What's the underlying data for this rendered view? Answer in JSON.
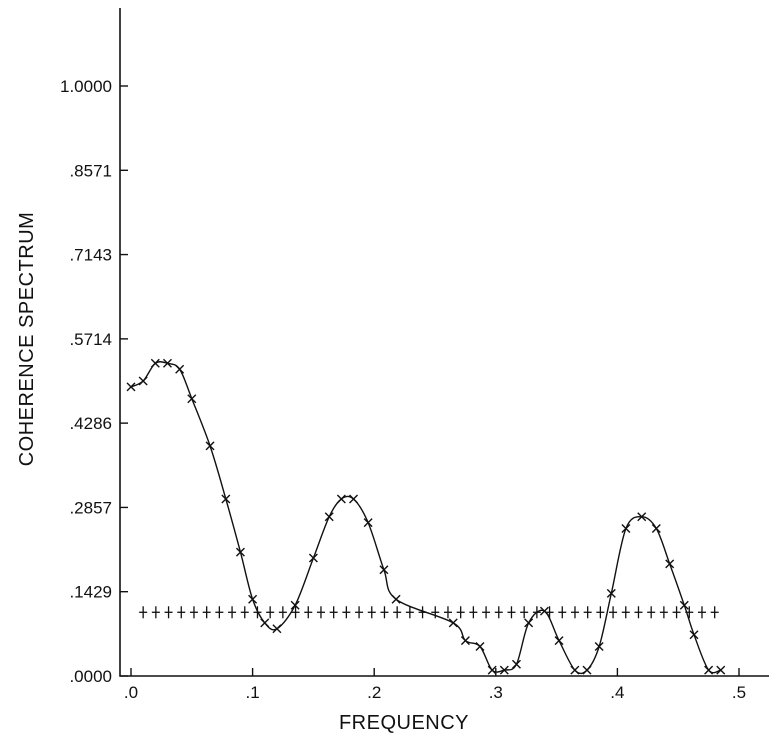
{
  "chart_data": {
    "type": "scatter",
    "xlabel": "FREQUENCY",
    "ylabel": "COHERENCE SPECTRUM",
    "xlim": [
      -0.005,
      0.52
    ],
    "ylim": [
      0,
      1.1
    ],
    "x_ticks": [
      0,
      0.1,
      0.2,
      0.3,
      0.4,
      0.5
    ],
    "x_tick_labels": [
      ".0",
      ".1",
      ".2",
      ".3",
      ".4",
      ".5"
    ],
    "y_ticks": [
      0,
      0.1429,
      0.2857,
      0.4286,
      0.5714,
      0.7143,
      0.8571,
      1.0
    ],
    "y_tick_labels": [
      ".0000",
      ".1429",
      ".2857",
      ".4286",
      ".5714",
      ".7143",
      ".8571",
      "1.0000"
    ],
    "grid": false,
    "series": [
      {
        "marker": "x",
        "connected": true,
        "points": [
          [
            0.0,
            0.49
          ],
          [
            0.01,
            0.5
          ],
          [
            0.02,
            0.53
          ],
          [
            0.03,
            0.53
          ],
          [
            0.04,
            0.52
          ],
          [
            0.05,
            0.47
          ],
          [
            0.065,
            0.39
          ],
          [
            0.078,
            0.3
          ],
          [
            0.09,
            0.21
          ],
          [
            0.1,
            0.13
          ],
          [
            0.11,
            0.09
          ],
          [
            0.12,
            0.08
          ],
          [
            0.135,
            0.12
          ],
          [
            0.15,
            0.2
          ],
          [
            0.163,
            0.27
          ],
          [
            0.173,
            0.3
          ],
          [
            0.183,
            0.3
          ],
          [
            0.195,
            0.26
          ],
          [
            0.208,
            0.18
          ],
          [
            0.218,
            0.13
          ],
          [
            0.265,
            0.09
          ],
          [
            0.275,
            0.06
          ],
          [
            0.287,
            0.05
          ],
          [
            0.297,
            0.01
          ],
          [
            0.307,
            0.01
          ],
          [
            0.317,
            0.02
          ],
          [
            0.327,
            0.09
          ],
          [
            0.34,
            0.11
          ],
          [
            0.352,
            0.06
          ],
          [
            0.365,
            0.01
          ],
          [
            0.375,
            0.01
          ],
          [
            0.385,
            0.05
          ],
          [
            0.395,
            0.14
          ],
          [
            0.407,
            0.25
          ],
          [
            0.42,
            0.27
          ],
          [
            0.432,
            0.25
          ],
          [
            0.443,
            0.19
          ],
          [
            0.455,
            0.12
          ],
          [
            0.463,
            0.07
          ],
          [
            0.475,
            0.01
          ],
          [
            0.485,
            0.01
          ]
        ]
      },
      {
        "marker": "+",
        "connected": false,
        "x_start": 0.01,
        "x_end": 0.48,
        "count": 46,
        "value": 0.108
      }
    ]
  }
}
